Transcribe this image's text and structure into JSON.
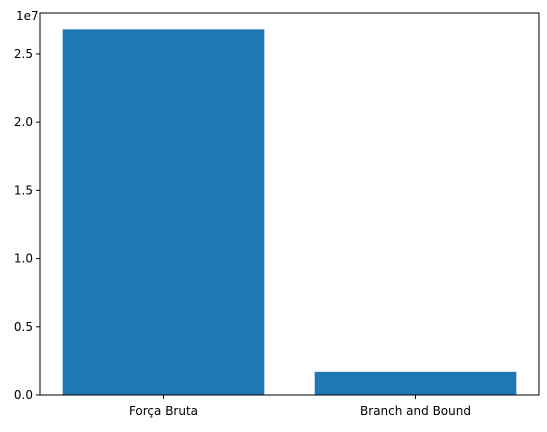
{
  "chart_data": {
    "type": "bar",
    "categories": [
      "Força Bruta",
      "Branch and Bound"
    ],
    "values": [
      26800000,
      1700000
    ],
    "ylim": [
      0,
      28000000
    ],
    "yticks": [
      0,
      5000000,
      10000000,
      15000000,
      20000000,
      25000000
    ],
    "ytick_labels": [
      "0.0",
      "0.5",
      "1.0",
      "1.5",
      "2.0",
      "2.5"
    ],
    "y_offset_label": "1e7",
    "bar_color": "#1f77b4",
    "grid": false,
    "title": "",
    "xlabel": "",
    "ylabel": ""
  }
}
